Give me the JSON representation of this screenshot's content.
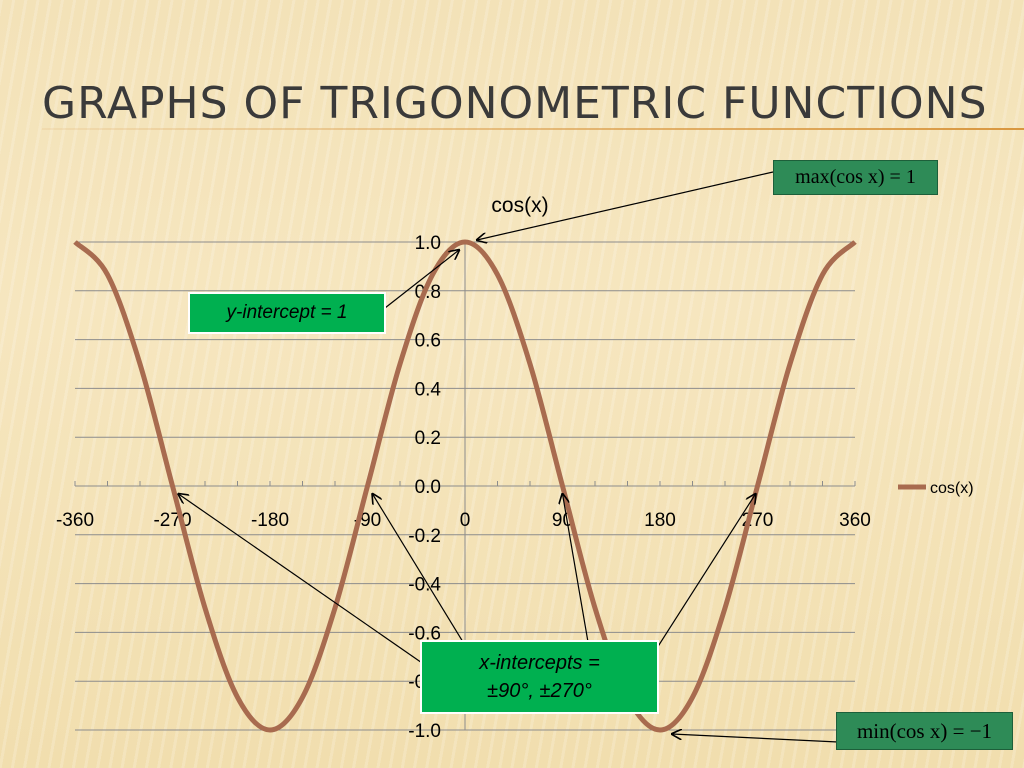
{
  "slide": {
    "title": "GRAPHS OF TRIGONOMETRIC FUNCTIONS"
  },
  "callouts": {
    "max": "max(cos x) = 1",
    "min": "min(cos x) = −1",
    "y_intercept": "y-intercept = 1",
    "x_intercepts_line1": "x-intercepts =",
    "x_intercepts_line2": "±90°, ±270°"
  },
  "chart_data": {
    "type": "line",
    "title": "cos(x)",
    "xlabel": "",
    "ylabel": "",
    "xlim": [
      -360,
      360
    ],
    "ylim": [
      -1.0,
      1.0
    ],
    "x_ticks": [
      "-360",
      "-270",
      "-180",
      "-90",
      "0",
      "90",
      "180",
      "270",
      "360"
    ],
    "y_ticks": [
      "1.0",
      "0.8",
      "0.6",
      "0.4",
      "0.2",
      "0.0",
      "-0.2",
      "-0.4",
      "-0.6",
      "-0.8",
      "-1.0"
    ],
    "grid": true,
    "legend_position": "right",
    "series": [
      {
        "name": "cos(x)",
        "color": "#a86b4f",
        "x": [
          -360,
          -330,
          -300,
          -270,
          -240,
          -210,
          -180,
          -150,
          -120,
          -90,
          -60,
          -30,
          0,
          30,
          60,
          90,
          120,
          150,
          180,
          210,
          240,
          270,
          300,
          330,
          360
        ],
        "y": [
          1.0,
          0.866,
          0.5,
          0.0,
          -0.5,
          -0.866,
          -1.0,
          -0.866,
          -0.5,
          0.0,
          0.5,
          0.866,
          1.0,
          0.866,
          0.5,
          0.0,
          -0.5,
          -0.866,
          -1.0,
          -0.866,
          -0.5,
          0.0,
          0.5,
          0.866,
          1.0
        ]
      }
    ]
  }
}
